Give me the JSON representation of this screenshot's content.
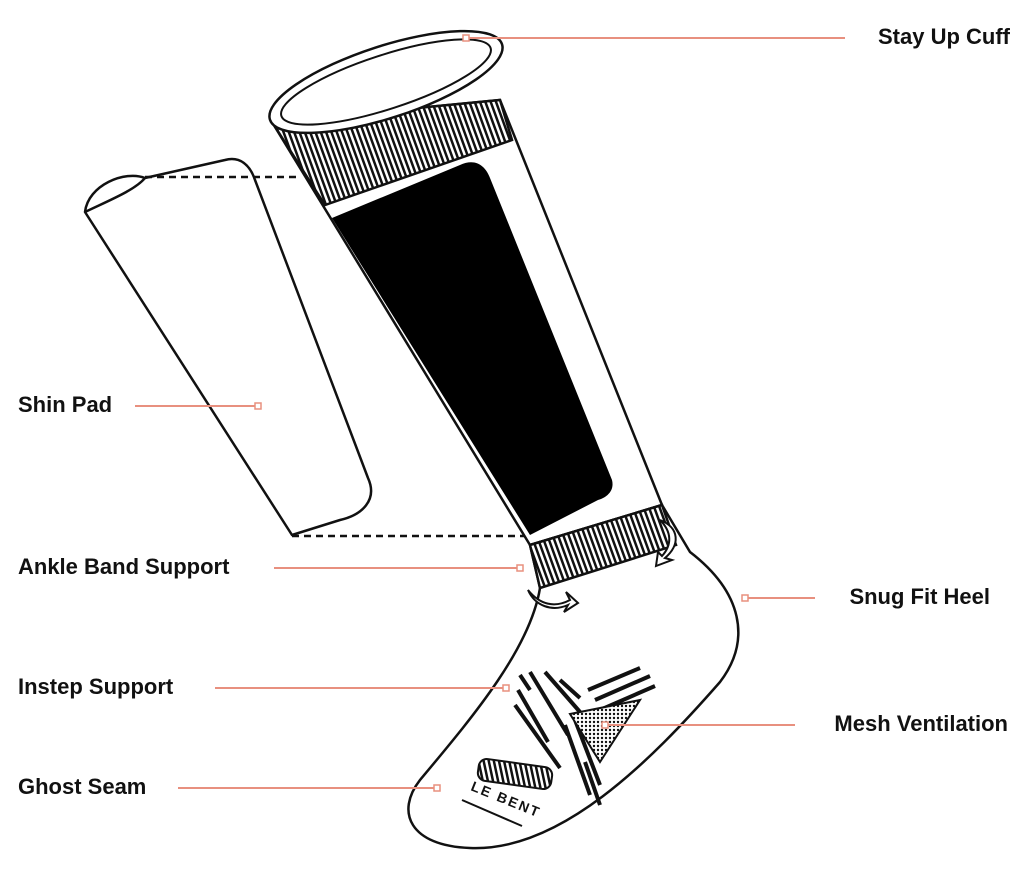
{
  "labels": [
    "Stay Up Cuff",
    "Shin Pad",
    "Ankle Band Support",
    "Snug Fit Heel",
    "Instep Support",
    "Mesh Ventilation",
    "Ghost Seam"
  ],
  "brand": "LE BENT"
}
